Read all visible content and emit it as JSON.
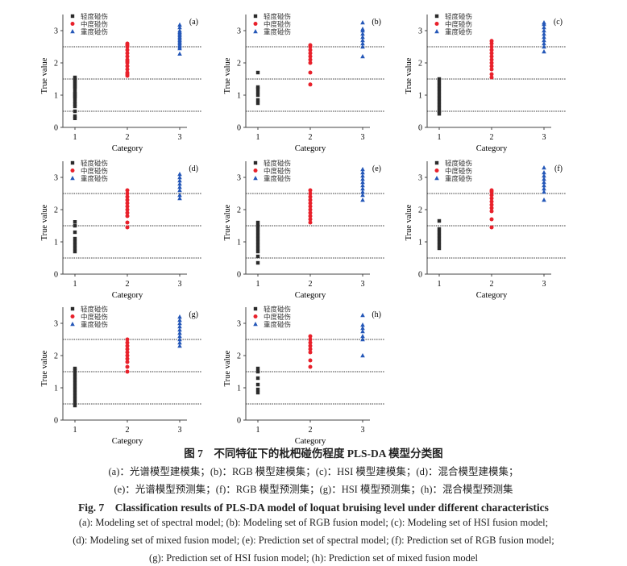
{
  "chart_data": [
    {
      "type": "scatter",
      "panel": "(a)",
      "xlabel": "Category",
      "ylabel": "True value",
      "xticks": [
        "1",
        "2",
        "3"
      ],
      "yticks": [
        "0",
        "1",
        "2",
        "3"
      ],
      "ylim": [
        0,
        3.5
      ],
      "thresholds": [
        0.5,
        1.5,
        2.5
      ],
      "legend": [
        "轻度碰伤",
        "中度碰伤",
        "重度碰伤"
      ],
      "series": [
        {
          "category": 1,
          "values": [
            0.28,
            0.35,
            0.5,
            0.65,
            0.72,
            0.8,
            0.9,
            0.95,
            1.0,
            1.05,
            1.1,
            1.2,
            1.25,
            1.3,
            1.35,
            1.4,
            1.45,
            1.5,
            1.55
          ]
        },
        {
          "category": 2,
          "values": [
            1.6,
            1.65,
            1.7,
            1.8,
            1.9,
            2.0,
            2.05,
            2.1,
            2.2,
            2.3,
            2.4,
            2.5,
            2.55,
            2.6
          ]
        },
        {
          "category": 3,
          "values": [
            2.28,
            2.45,
            2.5,
            2.55,
            2.6,
            2.65,
            2.7,
            2.75,
            2.8,
            2.85,
            2.9,
            2.95,
            3.0,
            3.1,
            3.18
          ]
        }
      ]
    },
    {
      "type": "scatter",
      "panel": "(b)",
      "xlabel": "Category",
      "ylabel": "True value",
      "xticks": [
        "1",
        "2",
        "3"
      ],
      "yticks": [
        "0",
        "1",
        "2",
        "3"
      ],
      "ylim": [
        0,
        3.5
      ],
      "thresholds": [
        0.5,
        1.5,
        2.5
      ],
      "legend": [
        "轻度碰伤",
        "中度碰伤",
        "重度碰伤"
      ],
      "series": [
        {
          "category": 1,
          "values": [
            0.75,
            0.85,
            1.0,
            1.1,
            1.2,
            1.25,
            1.7
          ]
        },
        {
          "category": 2,
          "values": [
            1.33,
            1.7,
            2.0,
            2.1,
            2.2,
            2.3,
            2.4,
            2.5,
            2.55
          ]
        },
        {
          "category": 3,
          "values": [
            2.2,
            2.5,
            2.6,
            2.7,
            2.8,
            2.9,
            3.0,
            3.05,
            3.25
          ]
        }
      ]
    },
    {
      "type": "scatter",
      "panel": "(c)",
      "xlabel": "Category",
      "ylabel": "True value",
      "xticks": [
        "1",
        "2",
        "3"
      ],
      "yticks": [
        "0",
        "1",
        "2",
        "3"
      ],
      "ylim": [
        0,
        3.5
      ],
      "thresholds": [
        0.5,
        1.5,
        2.5
      ],
      "legend": [
        "轻度碰伤",
        "中度碰伤",
        "重度碰伤"
      ],
      "series": [
        {
          "category": 1,
          "values": [
            0.42,
            0.5,
            0.6,
            0.7,
            0.8,
            0.9,
            1.0,
            1.1,
            1.2,
            1.3,
            1.4,
            1.5
          ]
        },
        {
          "category": 2,
          "values": [
            1.55,
            1.65,
            1.8,
            1.9,
            2.0,
            2.1,
            2.2,
            2.3,
            2.4,
            2.5,
            2.6,
            2.68
          ]
        },
        {
          "category": 3,
          "values": [
            2.35,
            2.5,
            2.6,
            2.7,
            2.8,
            2.9,
            3.0,
            3.1,
            3.2,
            3.25
          ]
        }
      ]
    },
    {
      "type": "scatter",
      "panel": "(d)",
      "xlabel": "Category",
      "ylabel": "True value",
      "xticks": [
        "1",
        "2",
        "3"
      ],
      "yticks": [
        "0",
        "1",
        "2",
        "3"
      ],
      "ylim": [
        0,
        3.5
      ],
      "thresholds": [
        0.5,
        1.5,
        2.5
      ],
      "legend": [
        "轻度碰伤",
        "中度碰伤",
        "重度碰伤"
      ],
      "series": [
        {
          "category": 1,
          "values": [
            0.7,
            0.8,
            0.9,
            1.0,
            1.1,
            1.3,
            1.5,
            1.62
          ]
        },
        {
          "category": 2,
          "values": [
            1.45,
            1.6,
            1.8,
            1.9,
            2.0,
            2.1,
            2.2,
            2.3,
            2.4,
            2.5,
            2.6
          ]
        },
        {
          "category": 3,
          "values": [
            2.35,
            2.45,
            2.6,
            2.7,
            2.8,
            2.9,
            3.0,
            3.1
          ]
        }
      ]
    },
    {
      "type": "scatter",
      "panel": "(e)",
      "xlabel": "Category",
      "ylabel": "True value",
      "xticks": [
        "1",
        "2",
        "3"
      ],
      "yticks": [
        "0",
        "1",
        "2",
        "3"
      ],
      "ylim": [
        0,
        3.5
      ],
      "thresholds": [
        0.5,
        1.5,
        2.5
      ],
      "legend": [
        "轻度碰伤",
        "中度碰伤",
        "重度碰伤"
      ],
      "series": [
        {
          "category": 1,
          "values": [
            0.35,
            0.55,
            0.7,
            0.8,
            0.9,
            1.0,
            1.1,
            1.2,
            1.3,
            1.4,
            1.5,
            1.6
          ]
        },
        {
          "category": 2,
          "values": [
            1.6,
            1.7,
            1.8,
            1.9,
            2.0,
            2.1,
            2.2,
            2.3,
            2.4,
            2.5,
            2.6
          ]
        },
        {
          "category": 3,
          "values": [
            2.3,
            2.45,
            2.55,
            2.65,
            2.75,
            2.85,
            2.95,
            3.05,
            3.15,
            3.25
          ]
        }
      ]
    },
    {
      "type": "scatter",
      "panel": "(f)",
      "xlabel": "Category",
      "ylabel": "True value",
      "xticks": [
        "1",
        "2",
        "3"
      ],
      "yticks": [
        "0",
        "1",
        "2",
        "3"
      ],
      "ylim": [
        0,
        3.5
      ],
      "thresholds": [
        0.5,
        1.5,
        2.5
      ],
      "legend": [
        "轻度碰伤",
        "中度碰伤",
        "重度碰伤"
      ],
      "series": [
        {
          "category": 1,
          "values": [
            0.8,
            0.9,
            1.0,
            1.1,
            1.2,
            1.3,
            1.4,
            1.65
          ]
        },
        {
          "category": 2,
          "values": [
            1.45,
            1.7,
            1.95,
            2.05,
            2.15,
            2.25,
            2.35,
            2.45,
            2.55,
            2.6
          ]
        },
        {
          "category": 3,
          "values": [
            2.3,
            2.55,
            2.65,
            2.75,
            2.85,
            2.95,
            3.05,
            3.15,
            3.3
          ]
        }
      ]
    },
    {
      "type": "scatter",
      "panel": "(g)",
      "xlabel": "Category",
      "ylabel": "True value",
      "xticks": [
        "1",
        "2",
        "3"
      ],
      "yticks": [
        "0",
        "1",
        "2",
        "3"
      ],
      "ylim": [
        0,
        3.5
      ],
      "thresholds": [
        0.5,
        1.5,
        2.5
      ],
      "legend": [
        "轻度碰伤",
        "中度碰伤",
        "重度碰伤"
      ],
      "series": [
        {
          "category": 1,
          "values": [
            0.45,
            0.55,
            0.65,
            0.75,
            0.85,
            0.95,
            1.05,
            1.15,
            1.25,
            1.35,
            1.45,
            1.55,
            1.6
          ]
        },
        {
          "category": 2,
          "values": [
            1.5,
            1.65,
            1.8,
            1.9,
            2.0,
            2.1,
            2.2,
            2.3,
            2.4,
            2.5
          ]
        },
        {
          "category": 3,
          "values": [
            2.3,
            2.4,
            2.5,
            2.6,
            2.7,
            2.8,
            2.9,
            3.0,
            3.1,
            3.2
          ]
        }
      ]
    },
    {
      "type": "scatter",
      "panel": "(h)",
      "xlabel": "Category",
      "ylabel": "True value",
      "xticks": [
        "1",
        "2",
        "3"
      ],
      "yticks": [
        "0",
        "1",
        "2",
        "3"
      ],
      "ylim": [
        0,
        3.5
      ],
      "thresholds": [
        0.5,
        1.5,
        2.5
      ],
      "legend": [
        "轻度碰伤",
        "中度碰伤",
        "重度碰伤"
      ],
      "series": [
        {
          "category": 1,
          "values": [
            0.85,
            0.95,
            1.1,
            1.3,
            1.5,
            1.6
          ]
        },
        {
          "category": 2,
          "values": [
            1.65,
            1.85,
            2.1,
            2.2,
            2.3,
            2.4,
            2.5,
            2.6
          ]
        },
        {
          "category": 3,
          "values": [
            2.0,
            2.5,
            2.6,
            2.75,
            2.85,
            2.95,
            3.25
          ]
        }
      ]
    }
  ],
  "colors": {
    "mild": "#2b2b2b",
    "moderate": "#e8212b",
    "severe": "#2457b8"
  },
  "caption": {
    "cn_title": "图 7　不同特征下的枇杷碰伤程度 PLS-DA 模型分类图",
    "cn_line1": "(a)：光谱模型建模集；(b)：RGB 模型建模集；(c)：HSI 模型建模集；(d)：混合模型建模集；",
    "cn_line2": "(e)：光谱模型预测集；(f)：RGB 模型预测集；(g)：HSI 模型预测集；(h)：混合模型预测集",
    "en_title": "Fig. 7　Classification results of PLS-DA model of loquat bruising level under different characteristics",
    "en_line1": "(a): Modeling set of spectral model; (b): Modeling set of RGB fusion model; (c): Modeling set of HSI fusion model;",
    "en_line2": "(d): Modeling set of mixed fusion model; (e): Prediction set of spectral model; (f): Prediction set of RGB fusion model;",
    "en_line3": "(g): Prediction set of HSI fusion model; (h): Prediction set of mixed fusion model"
  }
}
